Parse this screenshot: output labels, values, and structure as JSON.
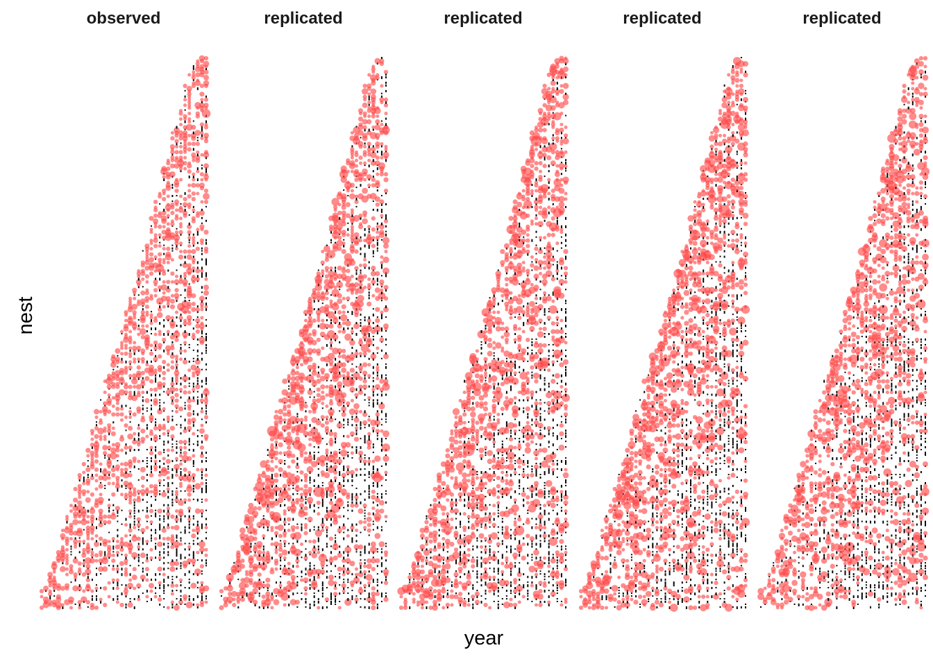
{
  "chart_data": {
    "type": "scatter",
    "title": "",
    "xlabel": "year",
    "ylabel": "nest",
    "facets": [
      "observed",
      "replicated",
      "replicated",
      "replicated",
      "replicated"
    ],
    "x_ticks_shown": false,
    "y_ticks_shown": false,
    "grid": false,
    "legend": "none",
    "mark_colors": {
      "point": "#ff4444",
      "zero": "#000000"
    },
    "encoding": "each nest is a row; each year with a record is a point; point area scales with the count in that nest-year; black markers are zero counts; rows begin at the year the nest was first recorded, producing a triangular pattern",
    "n_nests": 200,
    "n_years": 40,
    "seeds": [
      7,
      101,
      202,
      303,
      404
    ]
  }
}
